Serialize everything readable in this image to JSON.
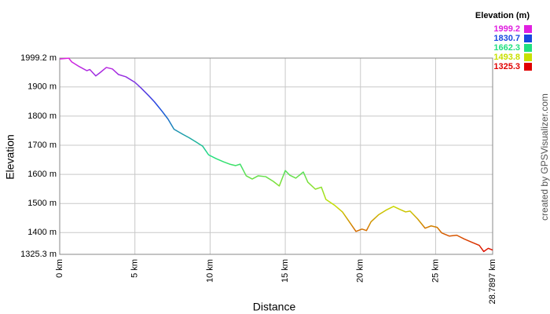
{
  "chart_data": {
    "type": "line",
    "title": "Elevation (m)",
    "x_label": "Distance",
    "y_label": "Elevation",
    "credit": "created by GPSVisualizer.com",
    "grid": true,
    "legend": "top-right",
    "color_scale": [
      {
        "value": 1999.2,
        "color": "#e020e0"
      },
      {
        "value": 1830.7,
        "color": "#1848e0"
      },
      {
        "value": 1662.3,
        "color": "#20e080"
      },
      {
        "value": 1493.8,
        "color": "#c8e000"
      },
      {
        "value": 1325.3,
        "color": "#e00000"
      }
    ],
    "xlim": [
      0,
      28.7897
    ],
    "xticks": [
      {
        "value": 0,
        "label": "0 km"
      },
      {
        "value": 5,
        "label": "5 km"
      },
      {
        "value": 10,
        "label": "10 km"
      },
      {
        "value": 15,
        "label": "15 km"
      },
      {
        "value": 20,
        "label": "20 km"
      },
      {
        "value": 25,
        "label": "25 km"
      },
      {
        "value": 28.7897,
        "label": "28.7897 km"
      }
    ],
    "ylim": [
      1325.3,
      1999.2
    ],
    "yticks": [
      {
        "value": 1325.3,
        "label": "1325.3 m"
      },
      {
        "value": 1400,
        "label": "1400 m"
      },
      {
        "value": 1500,
        "label": "1500 m"
      },
      {
        "value": 1600,
        "label": "1600 m"
      },
      {
        "value": 1700,
        "label": "1700 m"
      },
      {
        "value": 1800,
        "label": "1800 m"
      },
      {
        "value": 1900,
        "label": "1900 m"
      },
      {
        "value": 1999.2,
        "label": "1999.2 m"
      }
    ],
    "x": [
      0,
      0.6,
      0.8,
      1.3,
      1.8,
      2.0,
      2.4,
      2.7,
      3.1,
      3.5,
      3.9,
      4.4,
      5.0,
      5.4,
      5.9,
      6.3,
      6.8,
      7.2,
      7.6,
      8.2,
      8.6,
      9.1,
      9.5,
      9.9,
      10.4,
      10.9,
      11.3,
      11.7,
      12.0,
      12.4,
      12.8,
      13.2,
      13.7,
      14.2,
      14.6,
      15.0,
      15.3,
      15.7,
      16.2,
      16.5,
      17.0,
      17.4,
      17.7,
      18.3,
      18.8,
      19.3,
      19.7,
      20.1,
      20.4,
      20.7,
      21.2,
      21.7,
      22.2,
      22.6,
      23.0,
      23.3,
      23.8,
      24.3,
      24.7,
      25.1,
      25.4,
      25.9,
      26.4,
      26.9,
      27.4,
      27.9,
      28.2,
      28.5,
      28.79
    ],
    "values": [
      1996,
      1999,
      1986,
      1970,
      1956,
      1960,
      1938,
      1950,
      1967,
      1962,
      1943,
      1935,
      1916,
      1897,
      1871,
      1849,
      1817,
      1790,
      1755,
      1737,
      1726,
      1710,
      1697,
      1667,
      1654,
      1643,
      1635,
      1630,
      1635,
      1595,
      1584,
      1595,
      1592,
      1576,
      1560,
      1613,
      1597,
      1587,
      1608,
      1573,
      1549,
      1556,
      1514,
      1493,
      1471,
      1434,
      1404,
      1412,
      1407,
      1437,
      1461,
      1477,
      1490,
      1480,
      1471,
      1474,
      1447,
      1415,
      1423,
      1418,
      1399,
      1388,
      1391,
      1378,
      1367,
      1356,
      1335,
      1346,
      1340
    ]
  }
}
